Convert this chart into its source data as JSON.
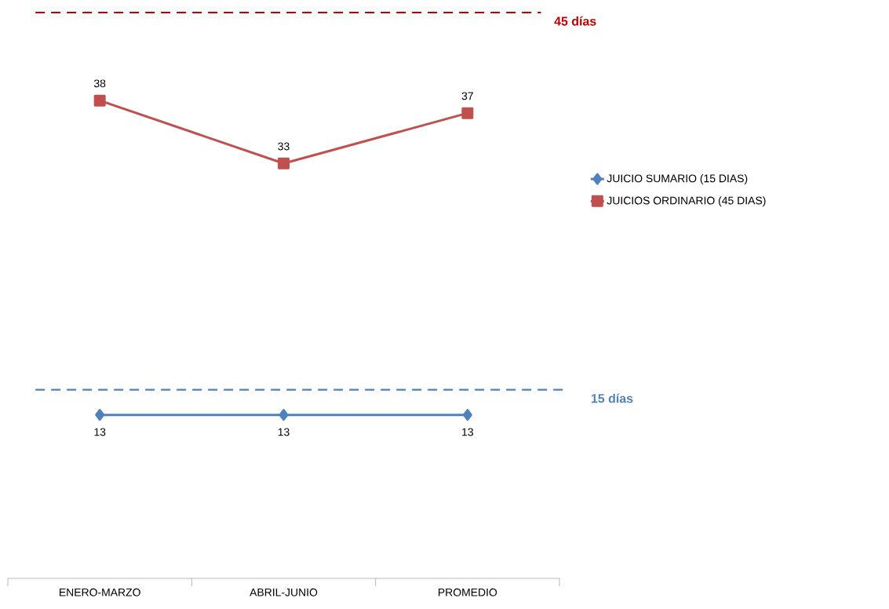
{
  "chart_data": {
    "type": "line",
    "categories": [
      "ENERO-MARZO",
      "ABRIL-JUNIO",
      "PROMEDIO"
    ],
    "series": [
      {
        "name": "JUICIO SUMARIO (15 DIAS)",
        "color": "#4f81bd",
        "marker": "diamond",
        "values": [
          13,
          13,
          13
        ]
      },
      {
        "name": "JUICIOS ORDINARIO (45 DIAS)",
        "color": "#c0504d",
        "marker": "square",
        "values": [
          38,
          33,
          37
        ]
      }
    ],
    "ylim": [
      0,
      45
    ],
    "tick_labels": "x",
    "data_labels": true,
    "legend": "right",
    "grid": false,
    "line_style": "solid",
    "ref_lines": [
      {
        "axis": "y",
        "value": 45,
        "label": "45 días",
        "color": "#c00000",
        "line_style": "dashed"
      },
      {
        "axis": "y",
        "value": 15,
        "label": "15 días",
        "color": "#4f81bd",
        "line_style": "dashed"
      }
    ]
  }
}
